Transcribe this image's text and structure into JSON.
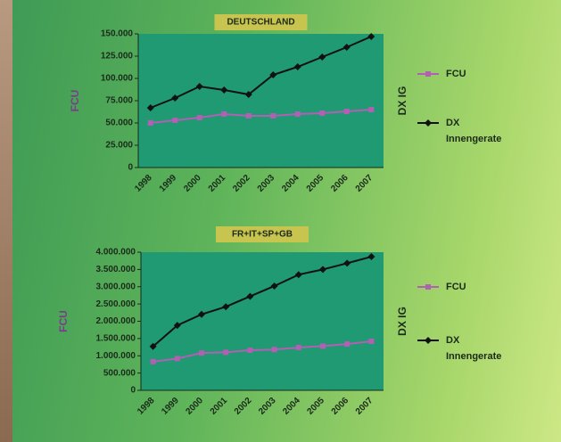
{
  "chart_data": [
    {
      "type": "line",
      "title": "DEUTSCHLAND",
      "y_label": "FCU",
      "right_label": "DX IG",
      "categories": [
        "1998",
        "1999",
        "2000",
        "2001",
        "2002",
        "2003",
        "2004",
        "2005",
        "2006",
        "2007"
      ],
      "series": [
        {
          "name": "FCU",
          "color": "#b25fb4",
          "values": [
            50000,
            53000,
            56000,
            60000,
            58000,
            58000,
            60000,
            61000,
            63000,
            65000
          ]
        },
        {
          "name": "DX Innengerate",
          "color": "#111111",
          "values": [
            67000,
            78000,
            91000,
            87000,
            82000,
            104000,
            113000,
            124000,
            135000,
            147000
          ]
        }
      ],
      "ylim": [
        0,
        150000
      ],
      "yticks": [
        0,
        {
          "value": 25000,
          "label": "25.000"
        },
        {
          "value": 50000,
          "label": "50.000"
        },
        {
          "value": 75000,
          "label": "75.000"
        },
        {
          "value": 100000,
          "label": "100.000"
        },
        {
          "value": 125000,
          "label": "125.000"
        },
        {
          "value": 150000,
          "label": "150.000"
        }
      ],
      "legend": "right"
    },
    {
      "type": "line",
      "title": "FR+IT+SP+GB",
      "y_label": "FCU",
      "right_label": "DX IG",
      "categories": [
        "1998",
        "1999",
        "2000",
        "2001",
        "2002",
        "2003",
        "2004",
        "2005",
        "2006",
        "2007"
      ],
      "series": [
        {
          "name": "FCU",
          "color": "#b25fb4",
          "values": [
            830000,
            920000,
            1080000,
            1100000,
            1160000,
            1180000,
            1240000,
            1280000,
            1340000,
            1420000
          ]
        },
        {
          "name": "DX Innengerate",
          "color": "#111111",
          "values": [
            1270000,
            1880000,
            2200000,
            2420000,
            2720000,
            3020000,
            3350000,
            3500000,
            3680000,
            3870000
          ]
        }
      ],
      "ylim": [
        0,
        4000000
      ],
      "yticks": [
        0,
        {
          "value": 500000,
          "label": "500.000"
        },
        {
          "value": 1000000,
          "label": "1.000.000"
        },
        {
          "value": 1500000,
          "label": "1.500.000"
        },
        {
          "value": 2000000,
          "label": "2.000.000"
        },
        {
          "value": 2500000,
          "label": "2.500.000"
        },
        {
          "value": 3000000,
          "label": "3.000.000"
        },
        {
          "value": 3500000,
          "label": "3.500.000"
        },
        {
          "value": 4000000,
          "label": "4.000.000"
        }
      ],
      "legend": "right"
    }
  ]
}
